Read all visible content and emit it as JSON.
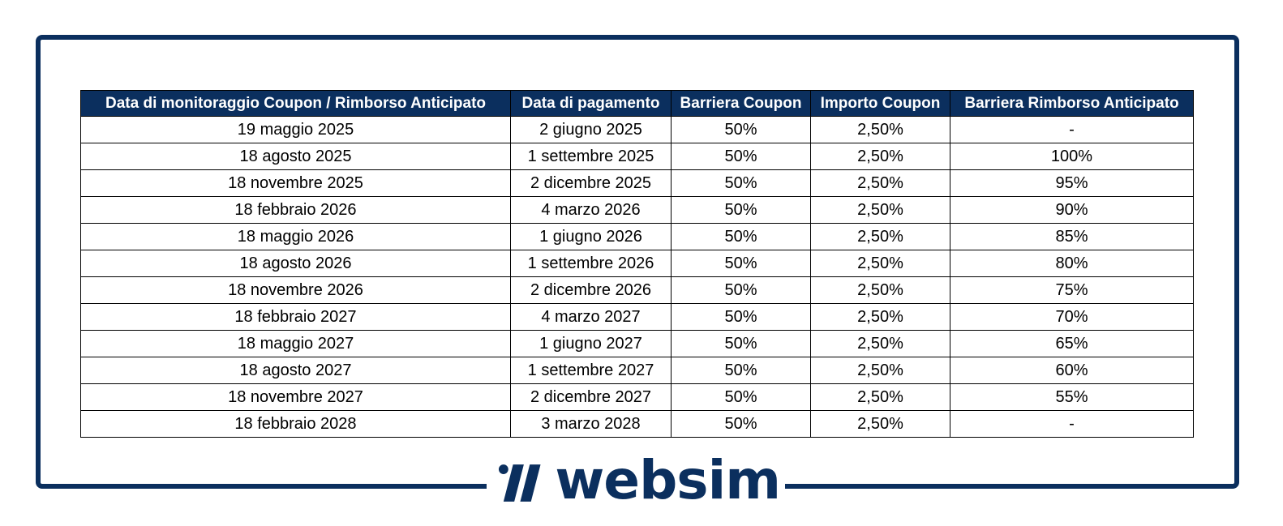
{
  "table": {
    "headers": [
      "Data di monitoraggio Coupon / Rimborso Anticipato",
      "Data di pagamento",
      "Barriera Coupon",
      "Importo Coupon",
      "Barriera Rimborso Anticipato"
    ],
    "rows": [
      [
        "19 maggio 2025",
        "2 giugno 2025",
        "50%",
        "2,50%",
        "-"
      ],
      [
        "18 agosto 2025",
        "1 settembre 2025",
        "50%",
        "2,50%",
        "100%"
      ],
      [
        "18 novembre 2025",
        "2 dicembre 2025",
        "50%",
        "2,50%",
        "95%"
      ],
      [
        "18 febbraio 2026",
        "4 marzo 2026",
        "50%",
        "2,50%",
        "90%"
      ],
      [
        "18 maggio 2026",
        "1 giugno 2026",
        "50%",
        "2,50%",
        "85%"
      ],
      [
        "18 agosto 2026",
        "1 settembre 2026",
        "50%",
        "2,50%",
        "80%"
      ],
      [
        "18 novembre 2026",
        "2 dicembre 2026",
        "50%",
        "2,50%",
        "75%"
      ],
      [
        "18 febbraio 2027",
        "4 marzo 2027",
        "50%",
        "2,50%",
        "70%"
      ],
      [
        "18 maggio 2027",
        "1 giugno 2027",
        "50%",
        "2,50%",
        "65%"
      ],
      [
        "18 agosto 2027",
        "1 settembre 2027",
        "50%",
        "2,50%",
        "60%"
      ],
      [
        "18 novembre 2027",
        "2 dicembre 2027",
        "50%",
        "2,50%",
        "55%"
      ],
      [
        "18 febbraio 2028",
        "3 marzo 2028",
        "50%",
        "2,50%",
        "-"
      ]
    ]
  },
  "logo": {
    "text": "websim",
    "icon": "websim-logo-mark"
  },
  "colors": {
    "brand": "#0b2f5e",
    "header_text": "#ffffff",
    "border": "#000000"
  }
}
